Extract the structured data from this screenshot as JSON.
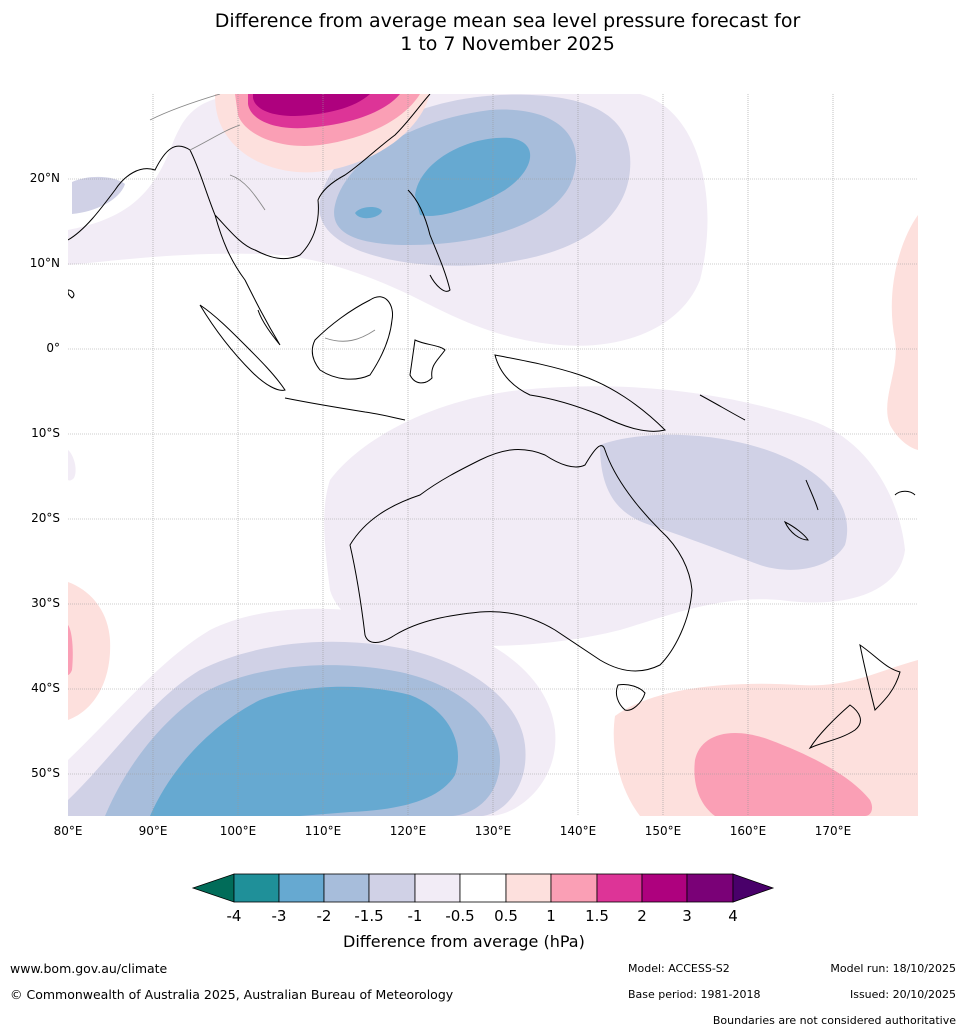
{
  "title": {
    "line1": "Difference from average mean sea level pressure forecast for",
    "line2": "1 to 7 November 2025"
  },
  "map": {
    "lat_labels": [
      "20°N",
      "10°N",
      "0°",
      "10°S",
      "20°S",
      "30°S",
      "40°S",
      "50°S"
    ],
    "lon_labels": [
      "80°E",
      "90°E",
      "100°E",
      "110°E",
      "120°E",
      "130°E",
      "140°E",
      "150°E",
      "160°E",
      "170°E"
    ],
    "extent": {
      "lon_min": 80,
      "lon_max": 180,
      "lat_min": -55,
      "lat_max": 30
    },
    "regions": {
      "nw_pacific_low": "negative anomaly centred near 15°N 130°E, down to -2 hPa",
      "china_high": "positive anomaly over southern China, up to 3 hPa",
      "southern_ocean_low": "negative anomaly south-west of Australia, down to -2 hPa",
      "tasman_high": "positive anomaly south of Australia and New Zealand, up to 1.5 hPa"
    }
  },
  "colorbar": {
    "ticks": [
      "-4",
      "-3",
      "-2",
      "-1.5",
      "-1",
      "-0.5",
      "0.5",
      "1",
      "1.5",
      "2",
      "3",
      "4"
    ],
    "colors": {
      "lt_-4": "#016c59",
      "-4_-3": "#1f9099",
      "-3_-2": "#66a9d1",
      "-2_-1.5": "#a7bddb",
      "-1.5_-1": "#d0d1e6",
      "-1_-0.5": "#f2ecf6",
      "-0.5_0.5": "#ffffff",
      "0.5_1": "#fde0dd",
      "1_1.5": "#fa9fb5",
      "1.5_2": "#dd3497",
      "2_3": "#ae017e",
      "3_4": "#7a0177",
      "gt_4": "#49006a"
    },
    "label": "Difference from average (hPa)"
  },
  "footer": {
    "website": "www.bom.gov.au/climate",
    "copyright": "© Commonwealth of Australia 2025, Australian Bureau of Meteorology",
    "model": "Model: ACCESS-S2",
    "base_period": "Base period: 1981-2018",
    "model_run": "Model run: 18/10/2025",
    "issued": "Issued: 20/10/2025",
    "disclaimer": "Boundaries are not considered authoritative"
  }
}
